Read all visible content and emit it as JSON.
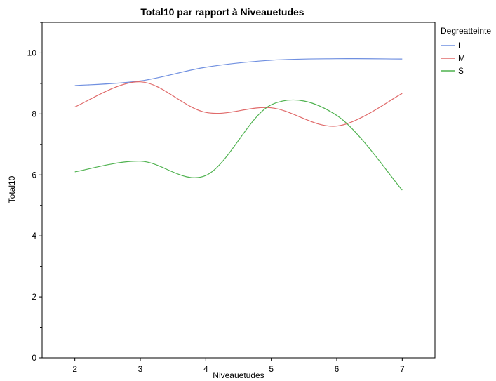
{
  "chart_data": {
    "type": "line",
    "title": "Total10 par rapport à Niveauetudes",
    "xlabel": "Niveauetudes",
    "ylabel": "Total10",
    "x": [
      2,
      3,
      4,
      5,
      6,
      7
    ],
    "xlim": [
      1.5,
      7.5
    ],
    "ylim": [
      0,
      11
    ],
    "yticks": [
      0,
      2,
      4,
      6,
      8,
      10
    ],
    "grid": false,
    "legend": {
      "title": "Degreatteinte",
      "position": "top-right"
    },
    "series": [
      {
        "name": "L",
        "color": "#6f8fe0",
        "values": [
          8.93,
          9.08,
          9.53,
          9.76,
          9.81,
          9.8
        ]
      },
      {
        "name": "M",
        "color": "#e06a6a",
        "values": [
          8.23,
          9.05,
          8.05,
          8.2,
          7.6,
          8.67
        ]
      },
      {
        "name": "S",
        "color": "#4fb24f",
        "values": [
          6.1,
          6.45,
          5.98,
          8.3,
          7.95,
          5.5
        ]
      }
    ]
  }
}
